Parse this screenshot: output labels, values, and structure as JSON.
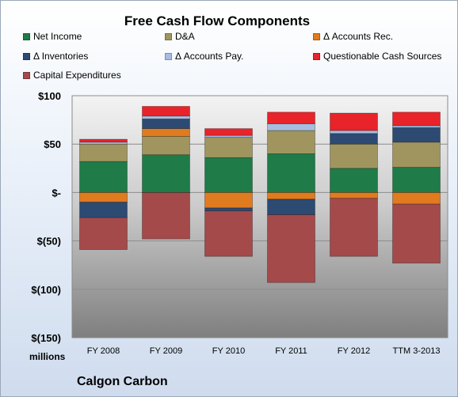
{
  "chart_data": {
    "type": "bar",
    "stacked": true,
    "title": "Free Cash Flow Components",
    "units_label": "millions",
    "footer": "Calgon Carbon",
    "categories": [
      "FY 2008",
      "FY 2009",
      "FY 2010",
      "FY 2011",
      "FY 2012",
      "TTM 3-2013"
    ],
    "ylim": [
      -150,
      100
    ],
    "yticks": [
      {
        "value": 100,
        "label": "$100"
      },
      {
        "value": 50,
        "label": "$50"
      },
      {
        "value": 0,
        "label": "$-"
      },
      {
        "value": -50,
        "label": "$(50)"
      },
      {
        "value": -100,
        "label": "$(100)"
      },
      {
        "value": -150,
        "label": "$(150)"
      }
    ],
    "grid": true,
    "legend_position": "top",
    "series": [
      {
        "name": "Net Income",
        "color": "#1f7b48",
        "values": [
          32,
          39,
          36,
          40,
          25,
          26
        ]
      },
      {
        "name": "D&A",
        "color": "#a0955f",
        "values": [
          18,
          19,
          21,
          24,
          25,
          26
        ]
      },
      {
        "name": "Δ Accounts Rec.",
        "color": "#e07b1f",
        "values": [
          -10,
          8,
          -16,
          -7,
          -6,
          -12
        ]
      },
      {
        "name": "Δ Inventories",
        "color": "#2d4a73",
        "values": [
          -16,
          10,
          -3,
          -16,
          11,
          15
        ]
      },
      {
        "name": "Δ Accounts Pay.",
        "color": "#a6bde0",
        "values": [
          2,
          3,
          2,
          7,
          3,
          2
        ]
      },
      {
        "name": "Questionable Cash Sources",
        "color": "#e8232a",
        "values": [
          3,
          10,
          7,
          12,
          18,
          14
        ]
      },
      {
        "name": "Capital Expenditures",
        "color": "#a44a4a",
        "values": [
          -33,
          -48,
          -47,
          -70,
          -60,
          -61
        ]
      }
    ]
  }
}
